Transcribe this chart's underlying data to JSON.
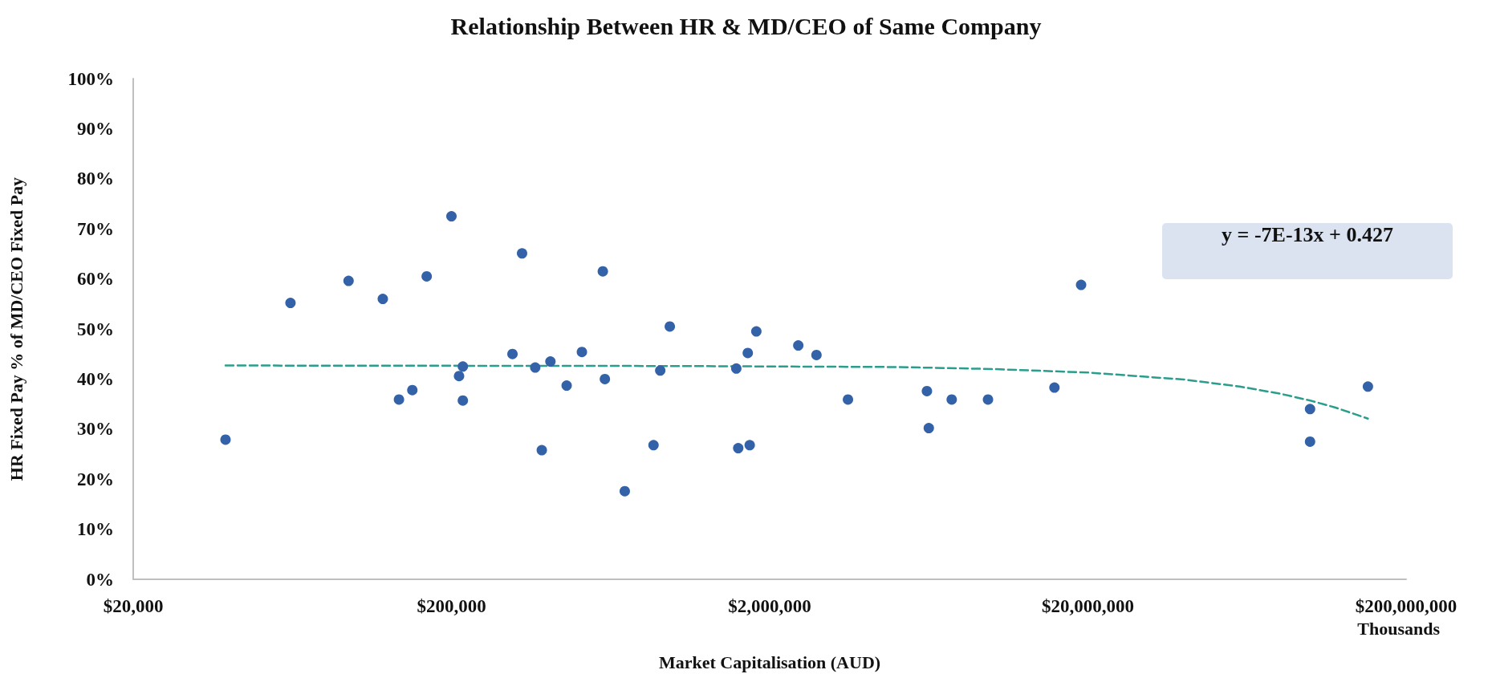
{
  "chart_data": {
    "type": "scatter",
    "title": "Relationship Between HR & MD/CEO of Same Company",
    "xlabel": "Market Capitalisation (AUD)",
    "ylabel": "HR Fixed Pay % of MD/CEO Fixed Pay",
    "log": "x",
    "marker": "circle",
    "xlim": [
      20000,
      200000000
    ],
    "xticks": [
      {
        "value": 20000,
        "label": "$20,000"
      },
      {
        "value": 200000,
        "label": "$200,000"
      },
      {
        "value": 2000000,
        "label": "$2,000,000"
      },
      {
        "value": 20000000,
        "label": "$20,000,000"
      },
      {
        "value": 200000000,
        "label": "$200,000,000"
      }
    ],
    "ylim": [
      0,
      100
    ],
    "yticks": [
      {
        "value": 0,
        "label": "0%"
      },
      {
        "value": 10,
        "label": "10%"
      },
      {
        "value": 20,
        "label": "20%"
      },
      {
        "value": 30,
        "label": "30%"
      },
      {
        "value": 40,
        "label": "40%"
      },
      {
        "value": 50,
        "label": "50%"
      },
      {
        "value": 60,
        "label": "60%"
      },
      {
        "value": 70,
        "label": "70%"
      },
      {
        "value": 80,
        "label": "80%"
      },
      {
        "value": 90,
        "label": "90%"
      },
      {
        "value": 100,
        "label": "100%"
      }
    ],
    "annotations": [
      "y = -7E-13x + 0.427",
      "Thousands"
    ],
    "series": [
      {
        "type": "scatter",
        "color": "#3462a8",
        "x": [
          39000,
          62400,
          95000,
          121700,
          136800,
          150700,
          167200,
          200000,
          211300,
          217200,
          217200,
          311000,
          333400,
          366700,
          384500,
          409300,
          460300,
          514000,
          598000,
          607000,
          701000,
          863000,
          906000,
          971000,
          1571000,
          1593000,
          1707000,
          1731000,
          1816000,
          2460000,
          2806000,
          3524000,
          6240000,
          6325000,
          7466000,
          9707000,
          15700000,
          19040000,
          99800000,
          99800000,
          151700000
        ],
        "values": [
          27.9,
          55.2,
          59.6,
          56,
          35.9,
          37.8,
          60.5,
          72.5,
          40.6,
          42.5,
          35.7,
          45,
          65.1,
          42.3,
          25.8,
          43.5,
          38.7,
          45.4,
          61.5,
          40,
          17.6,
          26.8,
          41.7,
          50.5,
          42.1,
          26.2,
          45.2,
          26.8,
          49.5,
          46.7,
          44.8,
          35.9,
          37.6,
          30.2,
          35.9,
          35.9,
          38.3,
          58.8,
          34,
          27.5,
          38.5
        ]
      },
      {
        "type": "line",
        "color": "#2a9d8c",
        "line_style": "dashed",
        "marker": "none",
        "x": [
          39000,
          1000000,
          5000000,
          10000000,
          20000000,
          40000000,
          60000000,
          80000000,
          100000000,
          120000000,
          151700000
        ],
        "values": [
          42.7,
          42.6,
          42.4,
          42,
          41.3,
          39.9,
          38.5,
          37.1,
          35.7,
          34.3,
          32.1
        ]
      }
    ]
  }
}
